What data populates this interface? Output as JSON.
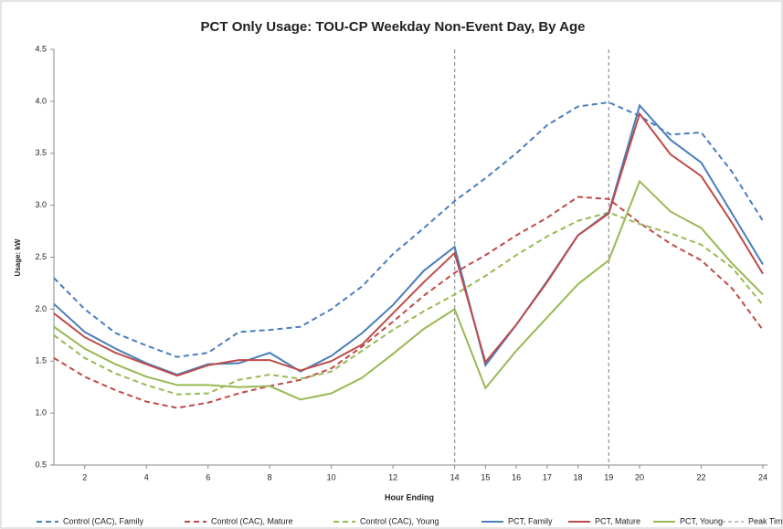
{
  "chart_data": {
    "type": "line",
    "title": "PCT Only Usage: TOU-CP Weekday Non-Event Day, By Age",
    "x_label": "Hour Ending",
    "y_label": "Usage: kW",
    "x": [
      1,
      2,
      3,
      4,
      5,
      6,
      7,
      8,
      9,
      10,
      11,
      12,
      13,
      14,
      15,
      16,
      17,
      18,
      19,
      20,
      21,
      22,
      23,
      24
    ],
    "xlim": [
      1,
      24
    ],
    "xticks": [
      2,
      4,
      6,
      8,
      10,
      12,
      14,
      15,
      16,
      17,
      18,
      19,
      20,
      22,
      24
    ],
    "ylim": [
      0.5,
      4.5
    ],
    "yticks": [
      {
        "value": 0.5,
        "label": "0.5"
      },
      {
        "value": 1,
        "label": "1.0"
      },
      {
        "value": 1.5,
        "label": "1.5"
      },
      {
        "value": 2,
        "label": "2.0"
      },
      {
        "value": 2.5,
        "label": "2.5"
      },
      {
        "value": 3,
        "label": "3.0"
      },
      {
        "value": 3.5,
        "label": "3.5"
      },
      {
        "value": 4,
        "label": "4.0"
      },
      {
        "value": 4.5,
        "label": "4.5"
      }
    ],
    "series": [
      {
        "name": "Control (CAC), Family",
        "color": "#4a7ebb",
        "dashed": true,
        "values": [
          2.3,
          2.0,
          1.77,
          1.65,
          1.54,
          1.58,
          1.78,
          1.8,
          1.83,
          2.0,
          2.22,
          2.53,
          2.78,
          3.04,
          3.26,
          3.5,
          3.77,
          3.95,
          3.99,
          3.86,
          3.68,
          3.7,
          3.32,
          2.85
        ]
      },
      {
        "name": "Control (CAC), Mature",
        "color": "#be4b48",
        "dashed": true,
        "values": [
          1.53,
          1.35,
          1.22,
          1.11,
          1.05,
          1.1,
          1.19,
          1.26,
          1.32,
          1.43,
          1.64,
          1.88,
          2.13,
          2.35,
          2.52,
          2.71,
          2.88,
          3.08,
          3.06,
          2.83,
          2.63,
          2.47,
          2.2,
          1.8
        ]
      },
      {
        "name": "Control (CAC), Young",
        "color": "#98b954",
        "dashed": true,
        "values": [
          1.75,
          1.53,
          1.38,
          1.27,
          1.18,
          1.19,
          1.32,
          1.37,
          1.33,
          1.4,
          1.6,
          1.8,
          1.98,
          2.14,
          2.32,
          2.52,
          2.7,
          2.85,
          2.93,
          2.82,
          2.73,
          2.62,
          2.4,
          2.04
        ]
      },
      {
        "name": "PCT, Family",
        "color": "#4a7ebb",
        "dashed": false,
        "values": [
          2.05,
          1.78,
          1.62,
          1.48,
          1.37,
          1.47,
          1.48,
          1.58,
          1.4,
          1.55,
          1.77,
          2.04,
          2.37,
          2.6,
          1.46,
          1.85,
          2.27,
          2.71,
          2.93,
          3.96,
          3.63,
          3.41,
          2.92,
          2.43
        ]
      },
      {
        "name": "PCT, Mature",
        "color": "#be4b48",
        "dashed": false,
        "values": [
          1.96,
          1.73,
          1.58,
          1.47,
          1.36,
          1.46,
          1.51,
          1.51,
          1.41,
          1.5,
          1.66,
          1.96,
          2.26,
          2.54,
          1.49,
          1.85,
          2.26,
          2.71,
          2.92,
          3.88,
          3.49,
          3.28,
          2.83,
          2.34
        ]
      },
      {
        "name": "PCT, Young",
        "color": "#98b954",
        "dashed": false,
        "values": [
          1.83,
          1.62,
          1.47,
          1.35,
          1.27,
          1.27,
          1.25,
          1.26,
          1.13,
          1.19,
          1.34,
          1.57,
          1.81,
          2.0,
          1.24,
          1.6,
          1.92,
          2.24,
          2.47,
          3.23,
          2.94,
          2.78,
          2.44,
          2.14
        ]
      }
    ],
    "reference_lines": {
      "name": "Peak Time",
      "color": "#999999",
      "x": [
        14,
        19
      ]
    }
  }
}
